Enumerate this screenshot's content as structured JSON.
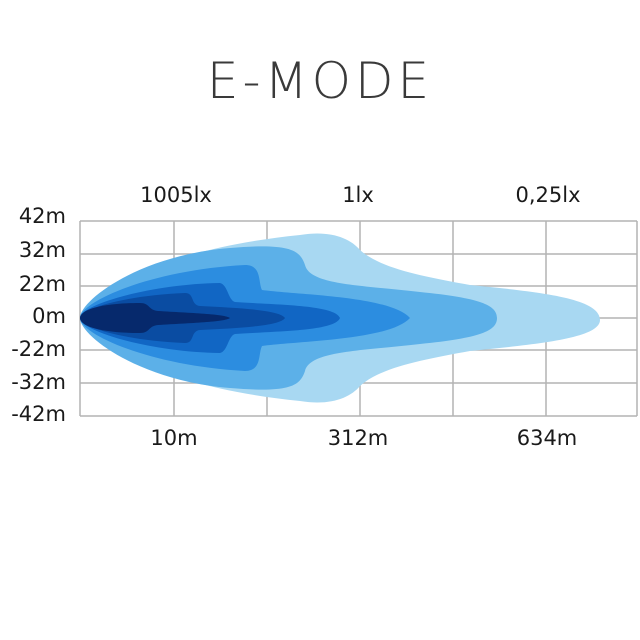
{
  "title": "E-MODE",
  "lux_labels": [
    "1005lx",
    "1lx",
    "0,25lx"
  ],
  "distance_labels": [
    "10m",
    "312m",
    "634m"
  ],
  "y_labels": [
    "42m",
    "32m",
    "22m",
    "0m",
    "-22m",
    "-32m",
    "-42m"
  ],
  "contour_colors": [
    "#a8d8f2",
    "#5cb0e8",
    "#2c8de0",
    "#1166c4",
    "#0a4ca2",
    "#06296c"
  ],
  "grid_color": "#b4b4b4"
}
